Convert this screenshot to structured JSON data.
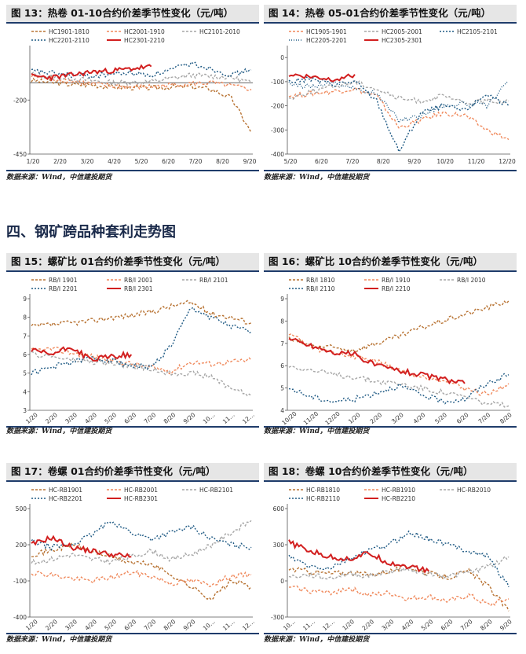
{
  "section_heading": "四、钢矿跨品种套利走势图",
  "source_text": "数据来源：Wind，中信建投期货",
  "colors": {
    "brown": "#b87333",
    "orange": "#f08a5d",
    "gray": "#a6a6a6",
    "blue": "#1f5a84",
    "red": "#d21f1f"
  },
  "figures": [
    {
      "title": "图 13：热卷 01-10合约价差季节性变化（元/吨）",
      "chart_data": {
        "type": "line",
        "xlabels": [
          "1/20",
          "2/20",
          "3/20",
          "4/20",
          "5/20",
          "6/20",
          "7/20",
          "8/20",
          "9/20"
        ],
        "yticks": [
          -450,
          -200
        ],
        "ylim": [
          -450,
          30
        ],
        "zero_line": -120,
        "legend": [
          "HC1901-1810",
          "HC2001-1910",
          "HC2101-2010",
          "HC2201-2110",
          "HC2301-2210"
        ],
        "series": [
          {
            "name": "HC1901-1810",
            "color": "brown",
            "dash": "3,2",
            "values": [
              -110,
              -118,
              -128,
              -130,
              -138,
              -142,
              -145,
              -140,
              -138,
              -150,
              -190,
              -350
            ]
          },
          {
            "name": "HC2001-1910",
            "color": "orange",
            "dash": "3,2",
            "values": [
              -90,
              -100,
              -112,
              -125,
              -135,
              -140,
              -138,
              -130,
              -125,
              -120,
              -135,
              -150
            ]
          },
          {
            "name": "HC2101-2010",
            "color": "gray",
            "dash": "3,2",
            "values": [
              -80,
              -95,
              -100,
              -110,
              -120,
              -118,
              -115,
              -100,
              -85,
              -90,
              -95,
              -120
            ]
          },
          {
            "name": "HC2201-2110",
            "color": "blue",
            "dash": "2,2",
            "values": [
              -65,
              -75,
              -85,
              -90,
              -80,
              -75,
              -85,
              -60,
              -30,
              -55,
              -85,
              -60
            ]
          },
          {
            "name": "HC2301-2210",
            "color": "red",
            "dash": "",
            "values": [
              -90,
              -95,
              -85,
              -70,
              -65,
              -55,
              -45
            ]
          }
        ]
      }
    },
    {
      "title": "图 14：热卷 05-01合约价差季节性变化（元/吨）",
      "chart_data": {
        "type": "line",
        "xlabels": [
          "5/20",
          "6/20",
          "7/20",
          "8/20",
          "9/20",
          "10/20",
          "11/20",
          "12/20"
        ],
        "yticks": [
          -400,
          -300,
          -200,
          -100,
          0
        ],
        "ylim": [
          -400,
          30
        ],
        "legend": [
          "HC1905-1901",
          "HC2005-2001",
          "HC2105-2101",
          "HC2205-2201",
          "HC2305-2301"
        ],
        "series": [
          {
            "name": "HC1905-1901",
            "color": "orange",
            "dash": "3,2",
            "values": [
              -160,
              -150,
              -140,
              -130,
              -160,
              -290,
              -260,
              -230,
              -240,
              -300,
              -340
            ]
          },
          {
            "name": "HC2005-2001",
            "color": "gray",
            "dash": "3,2",
            "values": [
              -170,
              -140,
              -120,
              -100,
              -130,
              -170,
              -180,
              -160,
              -190,
              -180,
              -180
            ]
          },
          {
            "name": "HC2105-2101",
            "color": "blue",
            "dash": "2,2",
            "values": [
              -100,
              -90,
              -110,
              -100,
              -180,
              -390,
              -230,
              -200,
              -220,
              -150,
              -200
            ]
          },
          {
            "name": "HC2205-2201",
            "color": "blue",
            "dash": "1,2",
            "values": [
              -110,
              -120,
              -100,
              -130,
              -150,
              -260,
              -240,
              -200,
              -190,
              -200,
              -100
            ]
          },
          {
            "name": "HC2305-2301",
            "color": "red",
            "dash": "",
            "values": [
              -70,
              -80,
              -90,
              -70
            ]
          }
        ]
      }
    },
    {
      "title": "图 15：螺矿比 01合约价差季节性变化（元/吨）",
      "chart_data": {
        "type": "line",
        "xlabels": [
          "1/20",
          "2/20",
          "3/20",
          "4/20",
          "5/20",
          "6/20",
          "7/20",
          "8/20",
          "9/20",
          "10…",
          "11…",
          "12…"
        ],
        "yticks": [
          3,
          4,
          5,
          6,
          7,
          8,
          9
        ],
        "ylim": [
          3,
          9
        ],
        "legend": [
          "RB/I 1901",
          "RB/I 2001",
          "RB/I 2101",
          "RB/I 2201",
          "RB/I 2301"
        ],
        "series": [
          {
            "name": "RB/I 1901",
            "color": "brown",
            "dash": "3,2",
            "values": [
              7.5,
              7.6,
              7.7,
              7.8,
              8.0,
              8.1,
              8.3,
              8.6,
              8.8,
              8.2,
              8.0,
              7.7
            ]
          },
          {
            "name": "RB/I 2001",
            "color": "orange",
            "dash": "3,2",
            "values": [
              6.2,
              6.3,
              6.1,
              5.9,
              5.7,
              5.5,
              5.3,
              5.1,
              5.6,
              5.5,
              5.6,
              5.7
            ]
          },
          {
            "name": "RB/I 2101",
            "color": "gray",
            "dash": "3,2",
            "values": [
              6.0,
              5.9,
              5.7,
              5.6,
              5.5,
              5.4,
              5.2,
              5.0,
              5.0,
              4.8,
              4.2,
              3.8
            ]
          },
          {
            "name": "RB/I 2201",
            "color": "blue",
            "dash": "2,2",
            "values": [
              5.0,
              5.3,
              5.6,
              5.8,
              5.7,
              5.4,
              5.3,
              6.5,
              8.5,
              8.0,
              7.5,
              7.2
            ]
          },
          {
            "name": "RB/I 2301",
            "color": "red",
            "dash": "",
            "values": [
              6.2,
              6.0,
              6.4,
              5.7,
              5.9,
              6.0
            ]
          }
        ]
      }
    },
    {
      "title": "图 16：螺矿比 10合约价差季节性变化（元/吨）",
      "chart_data": {
        "type": "line",
        "xlabels": [
          "10/20",
          "11/20",
          "12/20",
          "1/20",
          "2/20",
          "3/20",
          "4/20",
          "5/20",
          "6/20",
          "7/20",
          "8/20"
        ],
        "yticks": [
          4,
          5,
          6,
          7,
          8,
          9
        ],
        "ylim": [
          4,
          9
        ],
        "legend": [
          "RB/I 1810",
          "RB/I 1910",
          "RB/I 2010",
          "RB/I 2110",
          "RB/I 2210"
        ],
        "series": [
          {
            "name": "RB/I 1810",
            "color": "brown",
            "dash": "3,2",
            "values": [
              7.2,
              6.9,
              6.8,
              6.7,
              7.0,
              7.3,
              7.7,
              8.0,
              8.3,
              8.6,
              8.9
            ]
          },
          {
            "name": "RB/I 1910",
            "color": "orange",
            "dash": "3,2",
            "values": [
              7.5,
              6.8,
              6.6,
              6.4,
              6.2,
              5.8,
              5.5,
              5.4,
              5.0,
              4.7,
              5.2
            ]
          },
          {
            "name": "RB/I 2010",
            "color": "gray",
            "dash": "3,2",
            "values": [
              6.0,
              5.8,
              5.6,
              5.5,
              5.3,
              5.2,
              5.0,
              4.8,
              4.6,
              4.3,
              4.2
            ]
          },
          {
            "name": "RB/I 2110",
            "color": "blue",
            "dash": "2,2",
            "values": [
              5.0,
              4.6,
              4.4,
              4.5,
              4.8,
              5.1,
              4.7,
              4.4,
              4.5,
              5.2,
              5.6
            ]
          },
          {
            "name": "RB/I 2210",
            "color": "red",
            "dash": "",
            "values": [
              7.2,
              6.9,
              6.6,
              6.5,
              6.0,
              5.8,
              5.6,
              5.4,
              5.2
            ]
          }
        ]
      }
    },
    {
      "title": "图 17：卷螺 01合约价差季节性变化（元/吨）",
      "chart_data": {
        "type": "line",
        "xlabels": [
          "1/20",
          "2/20",
          "3/20",
          "4/20",
          "5/20",
          "6/20",
          "7/20",
          "8/20",
          "9/20",
          "10…",
          "11…",
          "12…"
        ],
        "yticks": [
          -400,
          -100,
          200,
          500
        ],
        "ylim": [
          -400,
          500
        ],
        "legend": [
          "HC-RB1901",
          "HC-RB2001",
          "HC-RB2101",
          "HC-RB2201",
          "HC-RB2301"
        ],
        "series": [
          {
            "name": "HC-RB1901",
            "color": "brown",
            "dash": "3,2",
            "values": [
              120,
              150,
              200,
              150,
              100,
              50,
              40,
              -50,
              -150,
              -250,
              -100,
              -150
            ]
          },
          {
            "name": "HC-RB2001",
            "color": "orange",
            "dash": "3,2",
            "values": [
              -30,
              -50,
              -80,
              -100,
              -70,
              -30,
              -60,
              -120,
              -100,
              -130,
              -60,
              -50
            ]
          },
          {
            "name": "HC-RB2101",
            "color": "gray",
            "dash": "3,2",
            "values": [
              50,
              80,
              120,
              80,
              60,
              100,
              150,
              80,
              120,
              200,
              300,
              400
            ]
          },
          {
            "name": "HC-RB2201",
            "color": "blue",
            "dash": "2,2",
            "values": [
              230,
              180,
              200,
              280,
              400,
              300,
              250,
              300,
              350,
              250,
              200,
              180
            ]
          },
          {
            "name": "HC-RB2301",
            "color": "red",
            "dash": "",
            "values": [
              200,
              260,
              180,
              150,
              120,
              100
            ]
          }
        ]
      }
    },
    {
      "title": "图 18：卷螺 10合约价差季节性变化（元/吨）",
      "chart_data": {
        "type": "line",
        "xlabels": [
          "10…",
          "11…",
          "12…",
          "1/20",
          "2/20",
          "3/20",
          "4/20",
          "5/20",
          "6/20",
          "7/20",
          "8/20",
          "9/20"
        ],
        "yticks": [
          -300,
          0,
          300,
          600
        ],
        "ylim": [
          -300,
          600
        ],
        "legend": [
          "HC-RB1810",
          "HC-RB1910",
          "HC-RB2010",
          "HC-RB2110",
          "HC-RB2210"
        ],
        "series": [
          {
            "name": "HC-RB1810",
            "color": "brown",
            "dash": "3,2",
            "values": [
              100,
              80,
              60,
              70,
              50,
              80,
              120,
              60,
              30,
              80,
              -50,
              -250
            ]
          },
          {
            "name": "HC-RB1910",
            "color": "orange",
            "dash": "3,2",
            "values": [
              -50,
              -80,
              -100,
              -60,
              -120,
              -100,
              -150,
              -130,
              -170,
              -120,
              -200,
              -150
            ]
          },
          {
            "name": "HC-RB2010",
            "color": "gray",
            "dash": "3,2",
            "values": [
              30,
              50,
              20,
              60,
              40,
              80,
              100,
              60,
              40,
              70,
              120,
              200
            ]
          },
          {
            "name": "HC-RB2110",
            "color": "blue",
            "dash": "2,2",
            "values": [
              200,
              120,
              100,
              180,
              250,
              300,
              400,
              350,
              300,
              250,
              200,
              -50
            ]
          },
          {
            "name": "HC-RB2210",
            "color": "red",
            "dash": "",
            "values": [
              320,
              250,
              200,
              180,
              230,
              150,
              120,
              80
            ]
          }
        ]
      }
    }
  ]
}
